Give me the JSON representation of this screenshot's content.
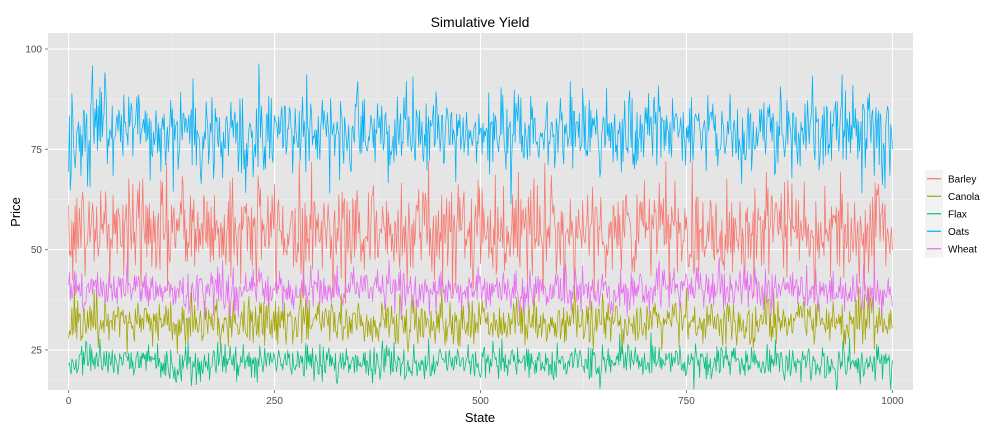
{
  "chart_data": {
    "type": "line",
    "title": "Simulative Yield",
    "xlabel": "State",
    "ylabel": "Price",
    "xlim": [
      -25,
      1025
    ],
    "ylim": [
      15,
      104
    ],
    "xticks": [
      0,
      250,
      500,
      750,
      1000
    ],
    "yticks": [
      25,
      50,
      75,
      100
    ],
    "x_tick_labels": [
      "0",
      "250",
      "500",
      "750",
      "1000"
    ],
    "y_tick_labels": [
      "25",
      "50",
      "75",
      "100"
    ],
    "grid": true,
    "legend_position": "right",
    "n_points": 1001,
    "series": [
      {
        "name": "Barley",
        "color": "#F8766D",
        "mean": 55,
        "spread": 6.5,
        "min": 36,
        "max": 72
      },
      {
        "name": "Canola",
        "color": "#A3A500",
        "mean": 32,
        "spread": 3.0,
        "min": 24,
        "max": 41
      },
      {
        "name": "Flax",
        "color": "#00BF7D",
        "mean": 22,
        "spread": 2.2,
        "min": 15,
        "max": 30
      },
      {
        "name": "Oats",
        "color": "#00B0F6",
        "mean": 79,
        "spread": 5.5,
        "min": 61,
        "max": 103
      },
      {
        "name": "Wheat",
        "color": "#E76BF3",
        "mean": 40,
        "spread": 2.6,
        "min": 33,
        "max": 48
      }
    ]
  }
}
